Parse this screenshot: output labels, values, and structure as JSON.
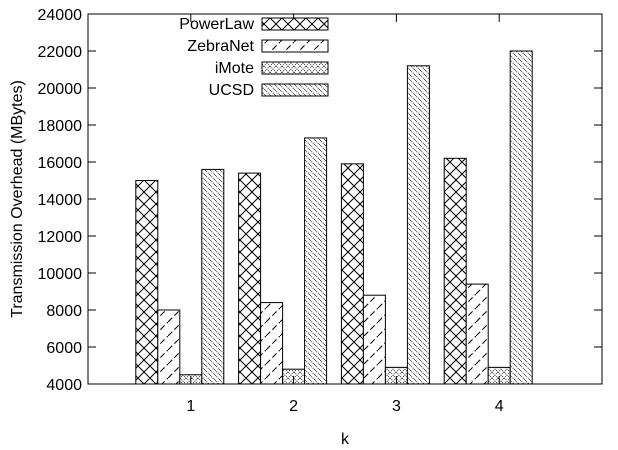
{
  "chart_data": {
    "type": "bar",
    "title": "",
    "xlabel": "k",
    "ylabel": "Transmission Overhead (MBytes)",
    "categories": [
      "1",
      "2",
      "3",
      "4"
    ],
    "ylim": [
      4000,
      24000
    ],
    "yticks": [
      4000,
      6000,
      8000,
      10000,
      12000,
      14000,
      16000,
      18000,
      20000,
      22000,
      24000
    ],
    "legend_position": "top-left",
    "grid": false,
    "series": [
      {
        "name": "PowerLaw",
        "pattern": "crosshatch",
        "values": [
          15000,
          15400,
          15900,
          16200
        ]
      },
      {
        "name": "ZebraNet",
        "pattern": "dashed-diagonal",
        "values": [
          8000,
          8400,
          8800,
          9400
        ]
      },
      {
        "name": "iMote",
        "pattern": "dense-dotted-crosshatch",
        "values": [
          4500,
          4800,
          4900,
          4900
        ]
      },
      {
        "name": "UCSD",
        "pattern": "fine-diagonal",
        "values": [
          15600,
          17300,
          21200,
          22000
        ]
      }
    ]
  }
}
